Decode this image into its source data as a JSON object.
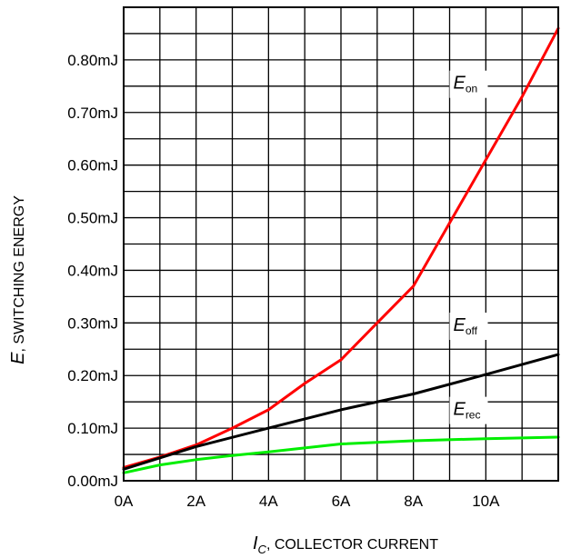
{
  "chart_data": {
    "type": "line",
    "xlabel": {
      "symbol": "I",
      "subscript": "C",
      "text": ", COLLECTOR CURRENT"
    },
    "ylabel": {
      "symbol": "E",
      "text": ", SWITCHING ENERGY"
    },
    "xlim": [
      0,
      12
    ],
    "ylim": [
      0,
      0.9
    ],
    "x_ticks": [
      0,
      2,
      4,
      6,
      8,
      10
    ],
    "x_tick_labels": [
      "0A",
      "2A",
      "4A",
      "6A",
      "8A",
      "10A"
    ],
    "y_ticks": [
      0,
      0.1,
      0.2,
      0.3,
      0.4,
      0.5,
      0.6,
      0.7,
      0.8
    ],
    "y_tick_labels": [
      "0.00mJ",
      "0.10mJ",
      "0.20mJ",
      "0.30mJ",
      "0.40mJ",
      "0.50mJ",
      "0.60mJ",
      "0.70mJ",
      "0.80mJ"
    ],
    "grid": true,
    "grid_step_x": 1,
    "grid_step_y": 0.05,
    "series": [
      {
        "name": "Eon",
        "label_main": "E",
        "label_sub": "on",
        "color": "#ff0000",
        "x": [
          0,
          1,
          2,
          3,
          4,
          5,
          6,
          7,
          8,
          9,
          10,
          11,
          12
        ],
        "y": [
          0.025,
          0.045,
          0.068,
          0.1,
          0.135,
          0.185,
          0.23,
          0.3,
          0.37,
          0.49,
          0.61,
          0.73,
          0.86
        ]
      },
      {
        "name": "Eoff",
        "label_main": "E",
        "label_sub": "off",
        "color": "#000000",
        "x": [
          0,
          2,
          4,
          6,
          8,
          10,
          12
        ],
        "y": [
          0.022,
          0.065,
          0.1,
          0.135,
          0.165,
          0.202,
          0.24
        ]
      },
      {
        "name": "Erec",
        "label_main": "E",
        "label_sub": "rec",
        "color": "#00ee00",
        "x": [
          0,
          1,
          2,
          3,
          4,
          6,
          8,
          10,
          12
        ],
        "y": [
          0.015,
          0.03,
          0.04,
          0.048,
          0.055,
          0.07,
          0.076,
          0.08,
          0.083
        ]
      }
    ]
  }
}
